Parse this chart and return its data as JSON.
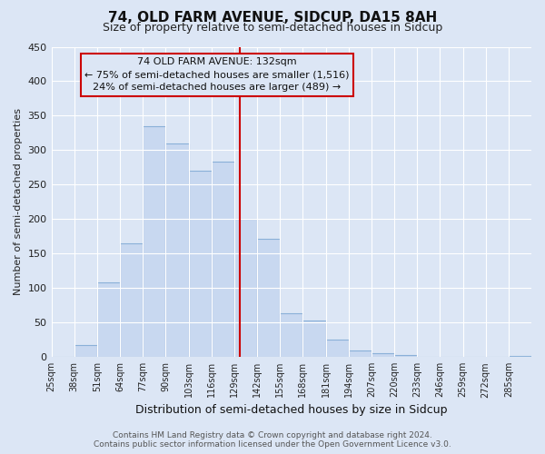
{
  "title": "74, OLD FARM AVENUE, SIDCUP, DA15 8AH",
  "subtitle": "Size of property relative to semi-detached houses in Sidcup",
  "xlabel": "Distribution of semi-detached houses by size in Sidcup",
  "ylabel": "Number of semi-detached properties",
  "bin_labels": [
    "25sqm",
    "38sqm",
    "51sqm",
    "64sqm",
    "77sqm",
    "90sqm",
    "103sqm",
    "116sqm",
    "129sqm",
    "142sqm",
    "155sqm",
    "168sqm",
    "181sqm",
    "194sqm",
    "207sqm",
    "220sqm",
    "233sqm",
    "246sqm",
    "259sqm",
    "272sqm",
    "285sqm"
  ],
  "bin_edges": [
    25,
    38,
    51,
    64,
    77,
    90,
    103,
    116,
    129,
    142,
    155,
    168,
    181,
    194,
    207,
    220,
    233,
    246,
    259,
    272,
    285,
    298
  ],
  "bar_heights": [
    0,
    18,
    108,
    165,
    335,
    310,
    270,
    283,
    200,
    172,
    63,
    53,
    25,
    10,
    6,
    3,
    0,
    0,
    0,
    0,
    2
  ],
  "bar_color": "#c8d8f0",
  "bar_edgecolor": "#8ab0d8",
  "property_size": 132,
  "vline_color": "#cc0000",
  "ylim": [
    0,
    450
  ],
  "yticks": [
    0,
    50,
    100,
    150,
    200,
    250,
    300,
    350,
    400,
    450
  ],
  "annotation_title": "74 OLD FARM AVENUE: 132sqm",
  "annotation_line1": "← 75% of semi-detached houses are smaller (1,516)",
  "annotation_line2": "24% of semi-detached houses are larger (489) →",
  "annotation_box_edgecolor": "#cc0000",
  "background_color": "#dce6f5",
  "grid_color": "#ffffff",
  "footer_line1": "Contains HM Land Registry data © Crown copyright and database right 2024.",
  "footer_line2": "Contains public sector information licensed under the Open Government Licence v3.0."
}
